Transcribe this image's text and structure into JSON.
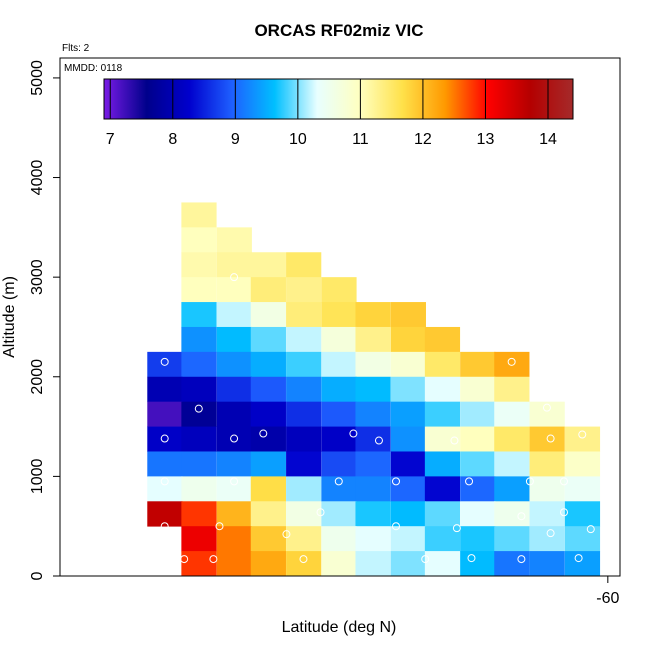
{
  "chart_data": {
    "type": "heatmap",
    "title": "ORCAS RF02miz VIC",
    "xlabel": "Latitude (deg N)",
    "ylabel": "Altitude (m)",
    "annotations": {
      "flights": "Flts: 2",
      "mmdd": "MMDD: 0118"
    },
    "x_tick_labels": [
      {
        "value": -60,
        "label": "-60"
      }
    ],
    "xlim": [
      -64.5,
      -59.9
    ],
    "ylim": [
      0,
      5200
    ],
    "y_ticks": [
      0,
      1000,
      2000,
      3000,
      4000,
      5000
    ],
    "colorbar": {
      "min": 6.9,
      "max": 14.4,
      "ticks": [
        7,
        8,
        9,
        10,
        11,
        12,
        13,
        14
      ],
      "stops": [
        "#7a1ce6",
        "#00008b",
        "#0000cd",
        "#1e5fff",
        "#00bfff",
        "#e8ffff",
        "#ffffc0",
        "#ffe14a",
        "#ff9900",
        "#ff0000",
        "#b40000",
        "#a52a2a"
      ]
    },
    "cell_size": {
      "lat": 0.286,
      "alt": 250
    },
    "cells": [
      [
        -63.36,
        3625,
        11.2
      ],
      [
        -63.36,
        3375,
        11.0
      ],
      [
        -63.36,
        3125,
        11.1
      ],
      [
        -63.36,
        2875,
        11.0
      ],
      [
        -63.07,
        3375,
        11.1
      ],
      [
        -63.07,
        3125,
        11.2
      ],
      [
        -63.07,
        2875,
        11.0
      ],
      [
        -62.79,
        3125,
        11.2
      ],
      [
        -62.79,
        2875,
        11.4
      ],
      [
        -62.5,
        3125,
        11.5
      ],
      [
        -62.5,
        2875,
        11.3
      ],
      [
        -62.21,
        2875,
        11.5
      ],
      [
        -62.21,
        2625,
        11.6
      ],
      [
        -61.93,
        2625,
        11.8
      ],
      [
        -61.64,
        2625,
        11.9
      ],
      [
        -61.64,
        2375,
        11.8
      ],
      [
        -61.36,
        2375,
        11.9
      ],
      [
        -63.36,
        2625,
        9.7
      ],
      [
        -63.07,
        2625,
        10.2
      ],
      [
        -62.79,
        2625,
        10.6
      ],
      [
        -62.5,
        2625,
        11.4
      ],
      [
        -63.36,
        2375,
        9.3
      ],
      [
        -63.07,
        2375,
        9.6
      ],
      [
        -62.79,
        2375,
        9.9
      ],
      [
        -62.5,
        2375,
        10.2
      ],
      [
        -62.21,
        2375,
        10.7
      ],
      [
        -61.93,
        2375,
        11.3
      ],
      [
        -63.64,
        2125,
        8.7
      ],
      [
        -63.36,
        2125,
        9.0
      ],
      [
        -63.07,
        2125,
        9.3
      ],
      [
        -62.79,
        2125,
        9.5
      ],
      [
        -62.5,
        2125,
        9.8
      ],
      [
        -62.21,
        2125,
        10.2
      ],
      [
        -61.93,
        2125,
        10.6
      ],
      [
        -61.64,
        2125,
        10.8
      ],
      [
        -61.36,
        2125,
        11.5
      ],
      [
        -61.07,
        2125,
        11.9
      ],
      [
        -60.79,
        2125,
        12.2
      ],
      [
        -63.64,
        1875,
        8.0
      ],
      [
        -63.36,
        1875,
        8.1
      ],
      [
        -63.07,
        1875,
        8.6
      ],
      [
        -62.79,
        1875,
        8.9
      ],
      [
        -62.5,
        1875,
        9.2
      ],
      [
        -62.21,
        1875,
        9.5
      ],
      [
        -61.93,
        1875,
        9.6
      ],
      [
        -61.64,
        1875,
        10.0
      ],
      [
        -61.36,
        1875,
        10.3
      ],
      [
        -61.07,
        1875,
        10.8
      ],
      [
        -60.79,
        1875,
        11.3
      ],
      [
        -63.64,
        1625,
        7.2
      ],
      [
        -63.36,
        1625,
        7.7
      ],
      [
        -63.07,
        1625,
        8.0
      ],
      [
        -62.79,
        1625,
        8.2
      ],
      [
        -62.5,
        1625,
        8.6
      ],
      [
        -62.21,
        1625,
        8.9
      ],
      [
        -61.93,
        1625,
        9.2
      ],
      [
        -61.64,
        1625,
        9.4
      ],
      [
        -61.36,
        1625,
        9.8
      ],
      [
        -61.07,
        1625,
        10.1
      ],
      [
        -60.79,
        1625,
        10.4
      ],
      [
        -60.5,
        1625,
        10.8
      ],
      [
        -63.64,
        1375,
        8.2
      ],
      [
        -63.36,
        1375,
        8.1
      ],
      [
        -63.07,
        1375,
        8.0
      ],
      [
        -62.79,
        1375,
        7.9
      ],
      [
        -62.5,
        1375,
        8.1
      ],
      [
        -62.21,
        1375,
        8.2
      ],
      [
        -61.93,
        1375,
        8.6
      ],
      [
        -61.64,
        1375,
        9.3
      ],
      [
        -61.36,
        1375,
        10.8
      ],
      [
        -61.07,
        1375,
        11.0
      ],
      [
        -60.79,
        1375,
        11.5
      ],
      [
        -60.5,
        1375,
        11.9
      ],
      [
        -60.21,
        1375,
        11.3
      ],
      [
        -63.64,
        1125,
        9.1
      ],
      [
        -63.36,
        1125,
        9.1
      ],
      [
        -63.07,
        1125,
        9.2
      ],
      [
        -62.79,
        1125,
        9.4
      ],
      [
        -62.5,
        1125,
        8.3
      ],
      [
        -62.21,
        1125,
        8.8
      ],
      [
        -61.93,
        1125,
        9.0
      ],
      [
        -61.64,
        1125,
        8.3
      ],
      [
        -61.36,
        1125,
        9.5
      ],
      [
        -61.07,
        1125,
        9.9
      ],
      [
        -60.79,
        1125,
        10.2
      ],
      [
        -60.5,
        1125,
        11.4
      ],
      [
        -60.21,
        1125,
        10.9
      ],
      [
        -63.64,
        875,
        10.3
      ],
      [
        -63.36,
        875,
        10.5
      ],
      [
        -63.07,
        875,
        10.4
      ],
      [
        -62.79,
        875,
        11.7
      ],
      [
        -62.5,
        875,
        10.1
      ],
      [
        -62.21,
        875,
        9.2
      ],
      [
        -61.93,
        875,
        9.2
      ],
      [
        -61.64,
        875,
        9.0
      ],
      [
        -61.36,
        875,
        8.3
      ],
      [
        -61.07,
        875,
        9.0
      ],
      [
        -60.79,
        875,
        9.4
      ],
      [
        -60.5,
        875,
        10.5
      ],
      [
        -60.21,
        875,
        10.4
      ],
      [
        -63.64,
        625,
        13.6
      ],
      [
        -63.36,
        625,
        12.8
      ],
      [
        -63.07,
        625,
        12.1
      ],
      [
        -62.79,
        625,
        11.3
      ],
      [
        -62.5,
        625,
        10.6
      ],
      [
        -62.21,
        625,
        10.1
      ],
      [
        -61.93,
        625,
        9.7
      ],
      [
        -61.64,
        625,
        9.6
      ],
      [
        -61.36,
        625,
        9.9
      ],
      [
        -61.07,
        625,
        10.3
      ],
      [
        -60.79,
        625,
        10.5
      ],
      [
        -60.5,
        625,
        10.2
      ],
      [
        -60.21,
        625,
        9.7
      ],
      [
        -63.36,
        375,
        13.2
      ],
      [
        -63.07,
        375,
        12.5
      ],
      [
        -62.79,
        375,
        11.9
      ],
      [
        -62.5,
        375,
        11.3
      ],
      [
        -62.21,
        375,
        10.5
      ],
      [
        -61.93,
        375,
        10.3
      ],
      [
        -61.64,
        375,
        10.2
      ],
      [
        -61.36,
        375,
        9.8
      ],
      [
        -61.07,
        375,
        9.7
      ],
      [
        -60.79,
        375,
        9.9
      ],
      [
        -60.5,
        375,
        10.1
      ],
      [
        -60.21,
        375,
        9.9
      ],
      [
        -63.36,
        125,
        12.8
      ],
      [
        -63.07,
        125,
        12.5
      ],
      [
        -62.79,
        125,
        12.2
      ],
      [
        -62.5,
        125,
        11.8
      ],
      [
        -62.21,
        125,
        10.8
      ],
      [
        -61.93,
        125,
        10.2
      ],
      [
        -61.64,
        125,
        10.0
      ],
      [
        -61.36,
        125,
        10.3
      ],
      [
        -61.07,
        125,
        9.6
      ],
      [
        -60.79,
        125,
        9.1
      ],
      [
        -60.5,
        125,
        9.2
      ],
      [
        -60.21,
        125,
        9.4
      ]
    ],
    "sample_points": [
      [
        -63.07,
        3000
      ],
      [
        -63.64,
        2150
      ],
      [
        -60.79,
        2150
      ],
      [
        -63.36,
        1680
      ],
      [
        -60.5,
        1690
      ],
      [
        -63.64,
        1380
      ],
      [
        -63.07,
        1380
      ],
      [
        -62.83,
        1430
      ],
      [
        -62.09,
        1430
      ],
      [
        -61.88,
        1360
      ],
      [
        -61.26,
        1360
      ],
      [
        -60.47,
        1380
      ],
      [
        -59.97,
        1380
      ],
      [
        -60.21,
        1420
      ],
      [
        -63.64,
        950
      ],
      [
        -63.07,
        950
      ],
      [
        -62.21,
        950
      ],
      [
        -61.74,
        950
      ],
      [
        -61.14,
        950
      ],
      [
        -60.64,
        950
      ],
      [
        -60.36,
        950
      ],
      [
        -63.64,
        500
      ],
      [
        -63.19,
        500
      ],
      [
        -62.64,
        420
      ],
      [
        -62.36,
        640
      ],
      [
        -61.74,
        500
      ],
      [
        -61.24,
        480
      ],
      [
        -60.71,
        600
      ],
      [
        -60.47,
        430
      ],
      [
        -60.36,
        640
      ],
      [
        -60.14,
        470
      ],
      [
        -63.24,
        170
      ],
      [
        -63.48,
        170
      ],
      [
        -62.5,
        170
      ],
      [
        -61.5,
        170
      ],
      [
        -61.12,
        180
      ],
      [
        -60.71,
        170
      ],
      [
        -60.24,
        180
      ]
    ]
  }
}
